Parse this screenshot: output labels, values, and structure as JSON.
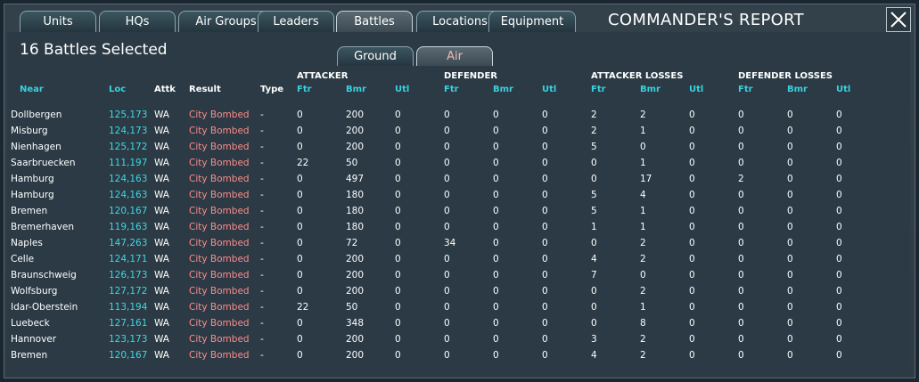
{
  "tabs": [
    "Units",
    "HQs",
    "Air Groups",
    "Leaders",
    "Battles",
    "Locations",
    "Equipment"
  ],
  "active_tab": "Battles",
  "window_title": "COMMANDER'S REPORT",
  "close_icon": "close-icon",
  "selection_count": "16 Battles Selected",
  "subtabs": {
    "ground": "Ground",
    "air": "Air",
    "active": "Air"
  },
  "group_headers": {
    "attacker": "ATTACKER",
    "defender": "DEFENDER",
    "attacker_losses": "ATTACKER LOSSES",
    "defender_losses": "DEFENDER LOSSES"
  },
  "columns": {
    "near": "Near",
    "loc": "Loc",
    "attk": "Attk",
    "result": "Result",
    "type": "Type",
    "a_ftr": "Ftr",
    "a_bmr": "Bmr",
    "a_utl": "Utl",
    "d_ftr": "Ftr",
    "d_bmr": "Bmr",
    "d_utl": "Utl",
    "al_ftr": "Ftr",
    "al_bmr": "Bmr",
    "al_utl": "Utl",
    "dl_ftr": "Ftr",
    "dl_bmr": "Bmr",
    "dl_utl": "Utl"
  },
  "rows": [
    [
      "Dollbergen",
      "125,173",
      "WA",
      "City Bombed",
      "-",
      "0",
      "200",
      "0",
      "0",
      "0",
      "0",
      "2",
      "2",
      "0",
      "0",
      "0",
      "0"
    ],
    [
      "Misburg",
      "124,173",
      "WA",
      "City Bombed",
      "-",
      "0",
      "200",
      "0",
      "0",
      "0",
      "0",
      "2",
      "1",
      "0",
      "0",
      "0",
      "0"
    ],
    [
      "Nienhagen",
      "125,172",
      "WA",
      "City Bombed",
      "-",
      "0",
      "200",
      "0",
      "0",
      "0",
      "0",
      "5",
      "0",
      "0",
      "0",
      "0",
      "0"
    ],
    [
      "Saarbruecken",
      "111,197",
      "WA",
      "City Bombed",
      "-",
      "22",
      "50",
      "0",
      "0",
      "0",
      "0",
      "0",
      "1",
      "0",
      "0",
      "0",
      "0"
    ],
    [
      "Hamburg",
      "124,163",
      "WA",
      "City Bombed",
      "-",
      "0",
      "497",
      "0",
      "0",
      "0",
      "0",
      "0",
      "17",
      "0",
      "2",
      "0",
      "0"
    ],
    [
      "Hamburg",
      "124,163",
      "WA",
      "City Bombed",
      "-",
      "0",
      "180",
      "0",
      "0",
      "0",
      "0",
      "5",
      "4",
      "0",
      "0",
      "0",
      "0"
    ],
    [
      "Bremen",
      "120,167",
      "WA",
      "City Bombed",
      "-",
      "0",
      "180",
      "0",
      "0",
      "0",
      "0",
      "5",
      "1",
      "0",
      "0",
      "0",
      "0"
    ],
    [
      "Bremerhaven",
      "119,163",
      "WA",
      "City Bombed",
      "-",
      "0",
      "180",
      "0",
      "0",
      "0",
      "0",
      "1",
      "1",
      "0",
      "0",
      "0",
      "0"
    ],
    [
      "Naples",
      "147,263",
      "WA",
      "City Bombed",
      "-",
      "0",
      "72",
      "0",
      "34",
      "0",
      "0",
      "0",
      "2",
      "0",
      "0",
      "0",
      "0"
    ],
    [
      "Celle",
      "124,171",
      "WA",
      "City Bombed",
      "-",
      "0",
      "200",
      "0",
      "0",
      "0",
      "0",
      "4",
      "2",
      "0",
      "0",
      "0",
      "0"
    ],
    [
      "Braunschweig",
      "126,173",
      "WA",
      "City Bombed",
      "-",
      "0",
      "200",
      "0",
      "0",
      "0",
      "0",
      "7",
      "0",
      "0",
      "0",
      "0",
      "0"
    ],
    [
      "Wolfsburg",
      "127,172",
      "WA",
      "City Bombed",
      "-",
      "0",
      "200",
      "0",
      "0",
      "0",
      "0",
      "0",
      "2",
      "0",
      "0",
      "0",
      "0"
    ],
    [
      "Idar-Oberstein",
      "113,194",
      "WA",
      "City Bombed",
      "-",
      "22",
      "50",
      "0",
      "0",
      "0",
      "0",
      "0",
      "1",
      "0",
      "0",
      "0",
      "0"
    ],
    [
      "Luebeck",
      "127,161",
      "WA",
      "City Bombed",
      "-",
      "0",
      "348",
      "0",
      "0",
      "0",
      "0",
      "0",
      "8",
      "0",
      "0",
      "0",
      "0"
    ],
    [
      "Hannover",
      "123,173",
      "WA",
      "City Bombed",
      "-",
      "0",
      "200",
      "0",
      "0",
      "0",
      "0",
      "3",
      "2",
      "0",
      "0",
      "0",
      "0"
    ],
    [
      "Bremen",
      "120,167",
      "WA",
      "City Bombed",
      "-",
      "0",
      "200",
      "0",
      "0",
      "0",
      "0",
      "4",
      "2",
      "0",
      "0",
      "0",
      "0"
    ]
  ],
  "colors": {
    "header_cyan": "#38d2e0",
    "loc_cyan": "#3fd8e2",
    "result_red": "#ff8c8c",
    "background": "#2b3a44"
  }
}
